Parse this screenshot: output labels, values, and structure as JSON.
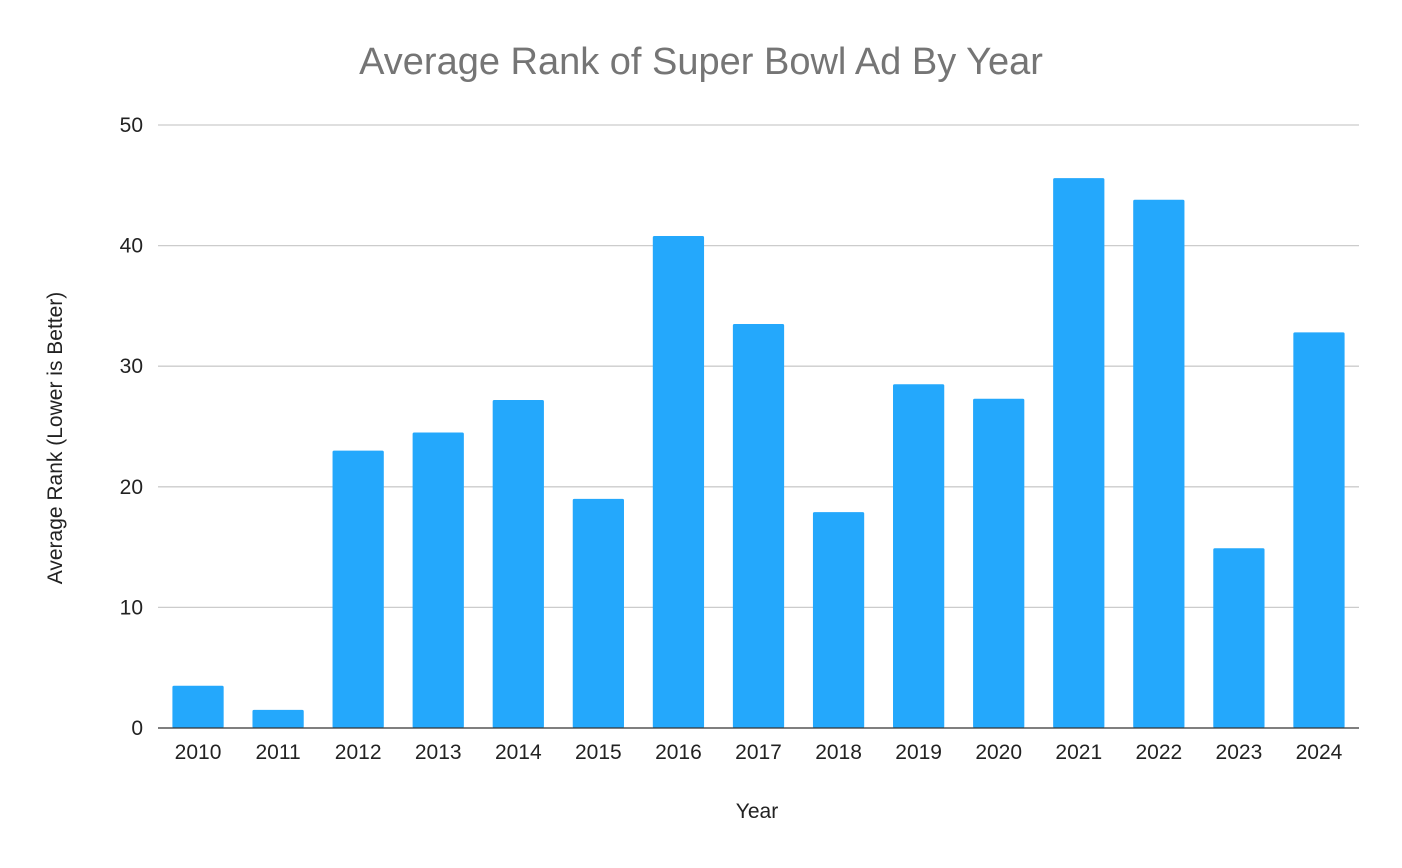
{
  "chart_data": {
    "type": "bar",
    "title": "Average Rank of Super Bowl Ad By Year",
    "xlabel": "Year",
    "ylabel": "Average Rank (Lower is Better)",
    "categories": [
      "2010",
      "2011",
      "2012",
      "2013",
      "2014",
      "2015",
      "2016",
      "2017",
      "2018",
      "2019",
      "2020",
      "2021",
      "2022",
      "2023",
      "2024"
    ],
    "values": [
      3.5,
      1.5,
      23,
      24.5,
      27.2,
      19,
      40.8,
      33.5,
      17.9,
      28.5,
      27.3,
      45.6,
      43.8,
      14.9,
      32.8
    ],
    "ylim": [
      0,
      50
    ],
    "yticks": [
      "0",
      "10",
      "20",
      "30",
      "40",
      "50"
    ],
    "grid": true,
    "legend": "none",
    "colors": {
      "bar": "#24a8fc",
      "title": "#757575",
      "grid": "#cccccc",
      "axis": "#333333",
      "text": "#222222"
    }
  }
}
